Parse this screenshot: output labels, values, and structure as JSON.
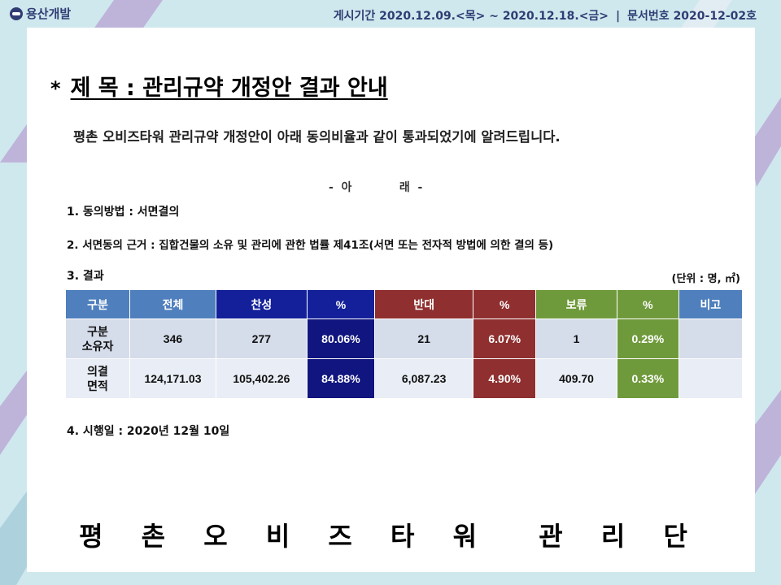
{
  "header": {
    "logo_text": "용산개발",
    "period": "게시기간 2020.12.09.<목> ~ 2020.12.18.<금>",
    "separator": "|",
    "doc_no": "문서번호 2020-12-02호"
  },
  "title": {
    "bullet": "*",
    "text": "제  목 : 관리규약 개정안 결과 안내"
  },
  "intro": "평촌 오비즈타워 관리규약 개정안이 아래 동의비율과 같이 통과되었기에 알려드립니다.",
  "are_label": "-  아            래  -",
  "items": [
    "1. 동의방법 : 서면결의",
    "2. 서면동의 근거 : 집합건물의 소유 및 관리에 관한 법률 제41조(서면 또는 전자적 방법에 의한 결의 등)",
    "3. 결과",
    "4. 시행일 : 2020년 12월 10일"
  ],
  "unit": "(단위 : 명, ㎡)",
  "table": {
    "headers": [
      "구분",
      "전체",
      "찬성",
      "%",
      "반대",
      "%",
      "보류",
      "%",
      "비고"
    ],
    "rows": [
      {
        "label1": "구분",
        "label2": "소유자",
        "cells": [
          "346",
          "277",
          "80.06%",
          "21",
          "6.07%",
          "1",
          "0.29%",
          ""
        ]
      },
      {
        "label1": "의결",
        "label2": "면적",
        "cells": [
          "124,171.03",
          "105,402.26",
          "84.88%",
          "6,087.23",
          "4.90%",
          "409.70",
          "0.33%",
          ""
        ]
      }
    ]
  },
  "footer": "평 촌 오 비 즈 타 워  관 리 단",
  "colors": {
    "header_blue": "#4f7fbd",
    "approve_navy": "#13209a",
    "oppose_red": "#8f2f2f",
    "abstain_green": "#6f9a3b",
    "header_text": "#2f3d73"
  }
}
